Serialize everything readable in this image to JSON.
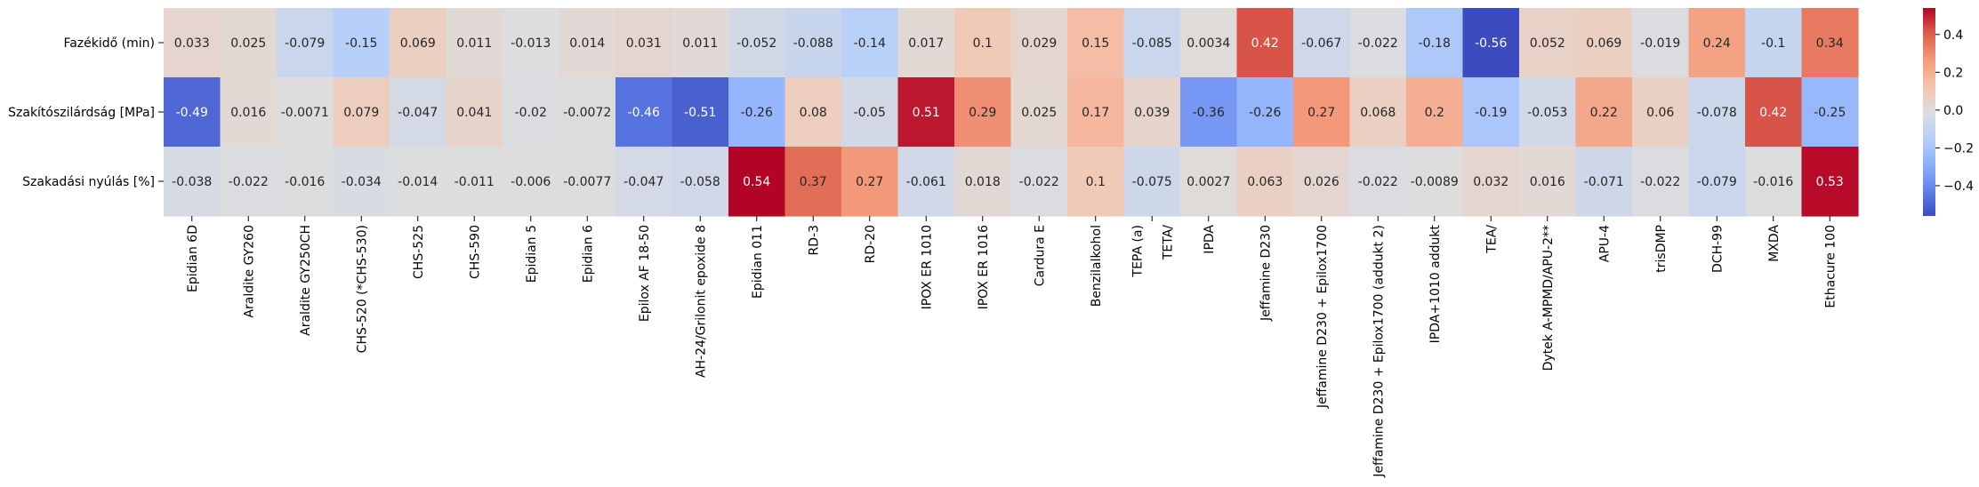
{
  "chart_data": {
    "type": "heatmap",
    "title": "",
    "xlabel": "",
    "ylabel": "",
    "rows": [
      "Fazékidő (min)",
      "Szakítószilárdság [MPa]",
      "Szakadási nyúlás [%]"
    ],
    "columns": [
      "Epidian 6D",
      "Araldite GY260",
      "Araldite GY250CH",
      "CHS-520 (*CHS-530)",
      "CHS-525",
      "CHS-590",
      "Epidian 5",
      "Epidian 6",
      "Epilox AF 18-50",
      "AH-24/Grilonit epoxide 8",
      "Epidian 011",
      "RD-3",
      "RD-20",
      "IPOX ER 1010",
      "IPOX ER 1016",
      "Cardura E",
      "Benzilalkohol",
      "TEPA (a)\n\nTETA/",
      "IPDA",
      "Jeffamine D230",
      "Jeffamine D230 + Epilox1700",
      "Jeffamine D230 + Epilox1700 (addukt 2)",
      "IPDA+1010 addukt",
      "TEA/",
      "Dytek A-MPMD/APU-2**",
      "APU-4",
      "trisDMP",
      "DCH-99",
      "MXDA",
      "Ethacure 100"
    ],
    "values": [
      [
        0.033,
        0.025,
        -0.079,
        -0.15,
        0.069,
        0.011,
        -0.013,
        0.014,
        0.031,
        0.011,
        -0.052,
        -0.088,
        -0.14,
        0.017,
        0.1,
        0.029,
        0.15,
        -0.085,
        0.0034,
        0.42,
        -0.067,
        -0.022,
        -0.18,
        -0.56,
        0.052,
        0.069,
        -0.019,
        0.24,
        -0.1,
        0.34
      ],
      [
        -0.49,
        0.016,
        -0.0071,
        0.079,
        -0.047,
        0.041,
        -0.02,
        -0.0072,
        -0.46,
        -0.51,
        -0.26,
        0.08,
        -0.05,
        0.51,
        0.29,
        0.025,
        0.17,
        0.039,
        -0.36,
        -0.26,
        0.27,
        0.068,
        0.2,
        -0.19,
        -0.053,
        0.22,
        0.06,
        -0.078,
        0.42,
        -0.25
      ],
      [
        -0.038,
        -0.022,
        -0.016,
        -0.034,
        -0.014,
        -0.011,
        -0.006,
        -0.0077,
        -0.047,
        -0.058,
        0.54,
        0.37,
        0.27,
        -0.061,
        0.018,
        -0.022,
        0.1,
        -0.075,
        0.0027,
        0.063,
        0.026,
        -0.022,
        -0.0089,
        0.032,
        0.016,
        -0.071,
        -0.022,
        -0.079,
        -0.016,
        0.53
      ]
    ],
    "colormap": "coolwarm",
    "vmin": -0.56,
    "vmax": 0.54,
    "colorbar_ticks": [
      0.4,
      0.2,
      0.0,
      -0.2,
      -0.4
    ],
    "colorbar_tick_labels": [
      "0.4",
      "0.2",
      "0.0",
      "−0.2",
      "−0.4"
    ],
    "grid": false,
    "legend": "colorbar-right"
  }
}
